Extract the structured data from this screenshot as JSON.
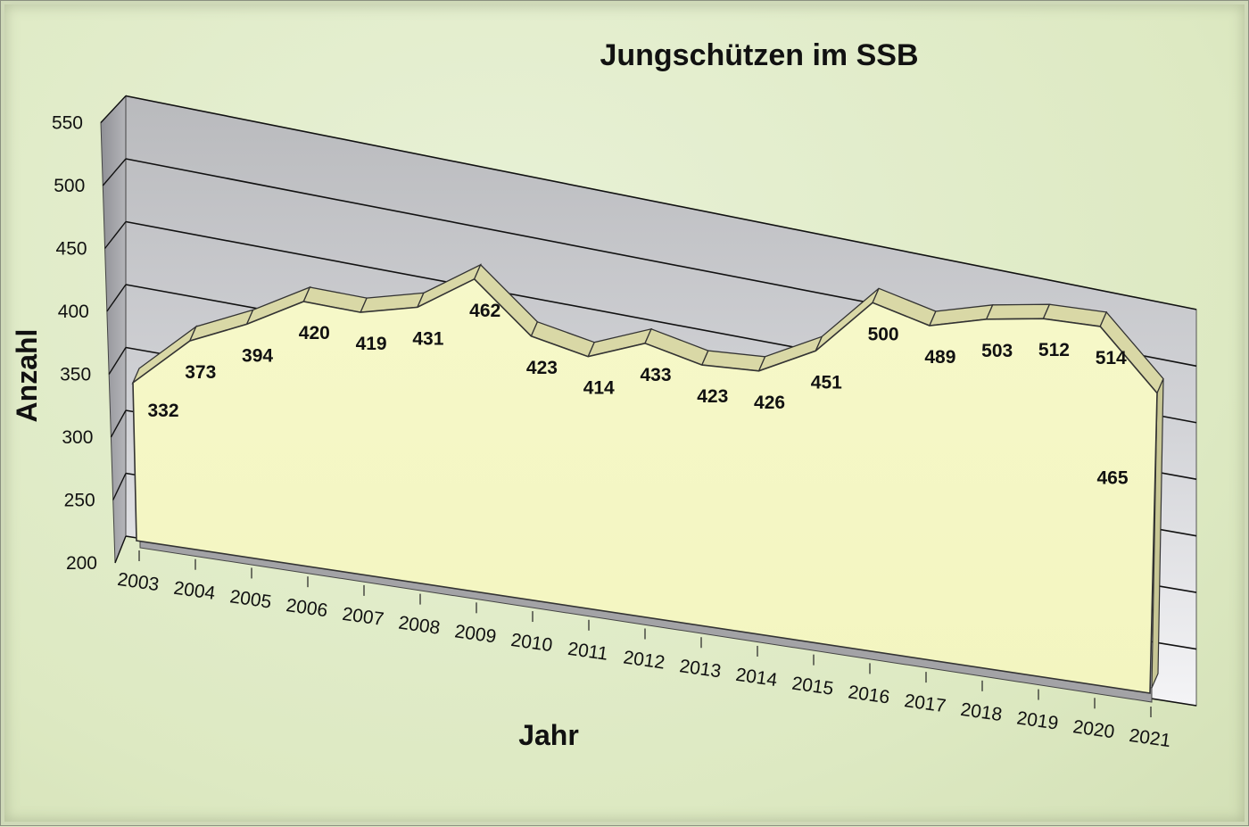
{
  "chart_data": {
    "type": "area",
    "title": "Jungschützen im SSB",
    "xlabel": "Jahr",
    "ylabel": "Anzahl",
    "ylim": [
      200,
      550
    ],
    "yticks": [
      "200",
      "250",
      "300",
      "350",
      "400",
      "450",
      "500",
      "550"
    ],
    "categories": [
      "2003",
      "2004",
      "2005",
      "2006",
      "2007",
      "2008",
      "2009",
      "2010",
      "2011",
      "2012",
      "2013",
      "2014",
      "2015",
      "2016",
      "2017",
      "2018",
      "2019",
      "2020",
      "2021"
    ],
    "values": [
      332,
      373,
      394,
      420,
      419,
      431,
      462,
      423,
      414,
      433,
      423,
      426,
      451,
      500,
      489,
      503,
      512,
      514,
      465
    ],
    "data_labels": [
      "332",
      "373",
      "394",
      "420",
      "419",
      "431",
      "462",
      "423",
      "414",
      "433",
      "423",
      "426",
      "451",
      "500",
      "489",
      "503",
      "512",
      "514",
      "465"
    ],
    "grid": true,
    "legend": "none",
    "three_d": true,
    "colors": {
      "area_fill": "#f5f7c4",
      "area_top": "#d9d8a6",
      "wall": "#c4c5c9",
      "floor": "#a3a3a6"
    }
  }
}
